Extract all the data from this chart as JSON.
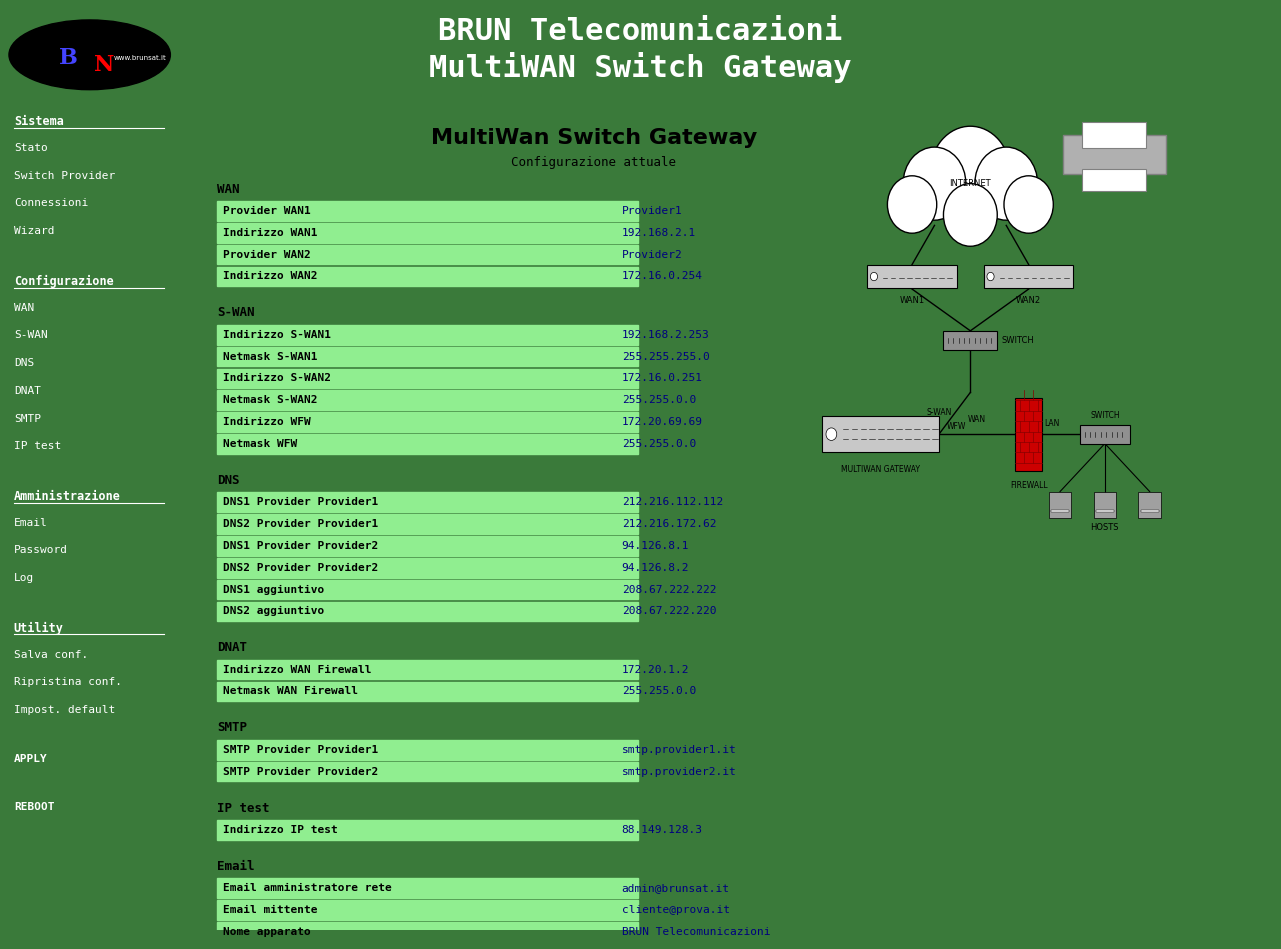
{
  "bg_green": "#3a7a3a",
  "bg_dark_green": "#2d6b2d",
  "header_green": "#3a7a3a",
  "white": "#ffffff",
  "light_green_row": "#90EE90",
  "text_dark": "#000033",
  "text_blue": "#000080",
  "text_green_sidebar": "#ffffff",
  "text_link_yellow": "#ffff00",
  "title_text": "BRUN Telecomunicazioni\nMultiWAN Switch Gateway",
  "main_title": "MultiWan Switch Gateway",
  "subtitle": "Configurazione attuale",
  "sidebar_sections": [
    {
      "header": "Sistema",
      "items": [
        "Stato",
        "Switch Provider",
        "Connessioni",
        "Wizard"
      ]
    },
    {
      "header": "Configurazione",
      "items": [
        "WAN",
        "S-WAN",
        "DNS",
        "DNAT",
        "SMTP",
        "IP test"
      ]
    },
    {
      "header": "Amministrazione",
      "items": [
        "Email",
        "Password",
        "Log"
      ]
    },
    {
      "header": "Utility",
      "items": [
        "Salva conf.",
        "Ripristina conf.",
        "Impost. default"
      ]
    }
  ],
  "bottom_links": [
    "APPLY",
    "REBOOT"
  ],
  "sections": [
    {
      "name": "WAN",
      "rows": [
        [
          "Provider WAN1",
          "Provider1"
        ],
        [
          "Indirizzo WAN1",
          "192.168.2.1"
        ],
        [
          "Provider WAN2",
          "Provider2"
        ],
        [
          "Indirizzo WAN2",
          "172.16.0.254"
        ]
      ]
    },
    {
      "name": "S-WAN",
      "rows": [
        [
          "Indirizzo S-WAN1",
          "192.168.2.253"
        ],
        [
          "Netmask S-WAN1",
          "255.255.255.0"
        ],
        [
          "Indirizzo S-WAN2",
          "172.16.0.251"
        ],
        [
          "Netmask S-WAN2",
          "255.255.0.0"
        ],
        [
          "Indirizzo WFW",
          "172.20.69.69"
        ],
        [
          "Netmask WFW",
          "255.255.0.0"
        ]
      ]
    },
    {
      "name": "DNS",
      "rows": [
        [
          "DNS1 Provider Provider1",
          "212.216.112.112"
        ],
        [
          "DNS2 Provider Provider1",
          "212.216.172.62"
        ],
        [
          "DNS1 Provider Provider2",
          "94.126.8.1"
        ],
        [
          "DNS2 Provider Provider2",
          "94.126.8.2"
        ],
        [
          "DNS1 aggiuntivo",
          "208.67.222.222"
        ],
        [
          "DNS2 aggiuntivo",
          "208.67.222.220"
        ]
      ]
    },
    {
      "name": "DNAT",
      "rows": [
        [
          "Indirizzo WAN Firewall",
          "172.20.1.2"
        ],
        [
          "Netmask WAN Firewall",
          "255.255.0.0"
        ]
      ]
    },
    {
      "name": "SMTP",
      "rows": [
        [
          "SMTP Provider Provider1",
          "smtp.provider1.it"
        ],
        [
          "SMTP Provider Provider2",
          "smtp.provider2.it"
        ]
      ]
    },
    {
      "name": "IP test",
      "rows": [
        [
          "Indirizzo IP test",
          "88.149.128.3"
        ]
      ]
    },
    {
      "name": "Email",
      "rows": [
        [
          "Email amministratore rete",
          "admin@brunsat.it"
        ],
        [
          "Email mittente",
          "cliente@prova.it"
        ],
        [
          "Nome apparato",
          "BRUN Telecomunicazioni"
        ]
      ]
    }
  ]
}
